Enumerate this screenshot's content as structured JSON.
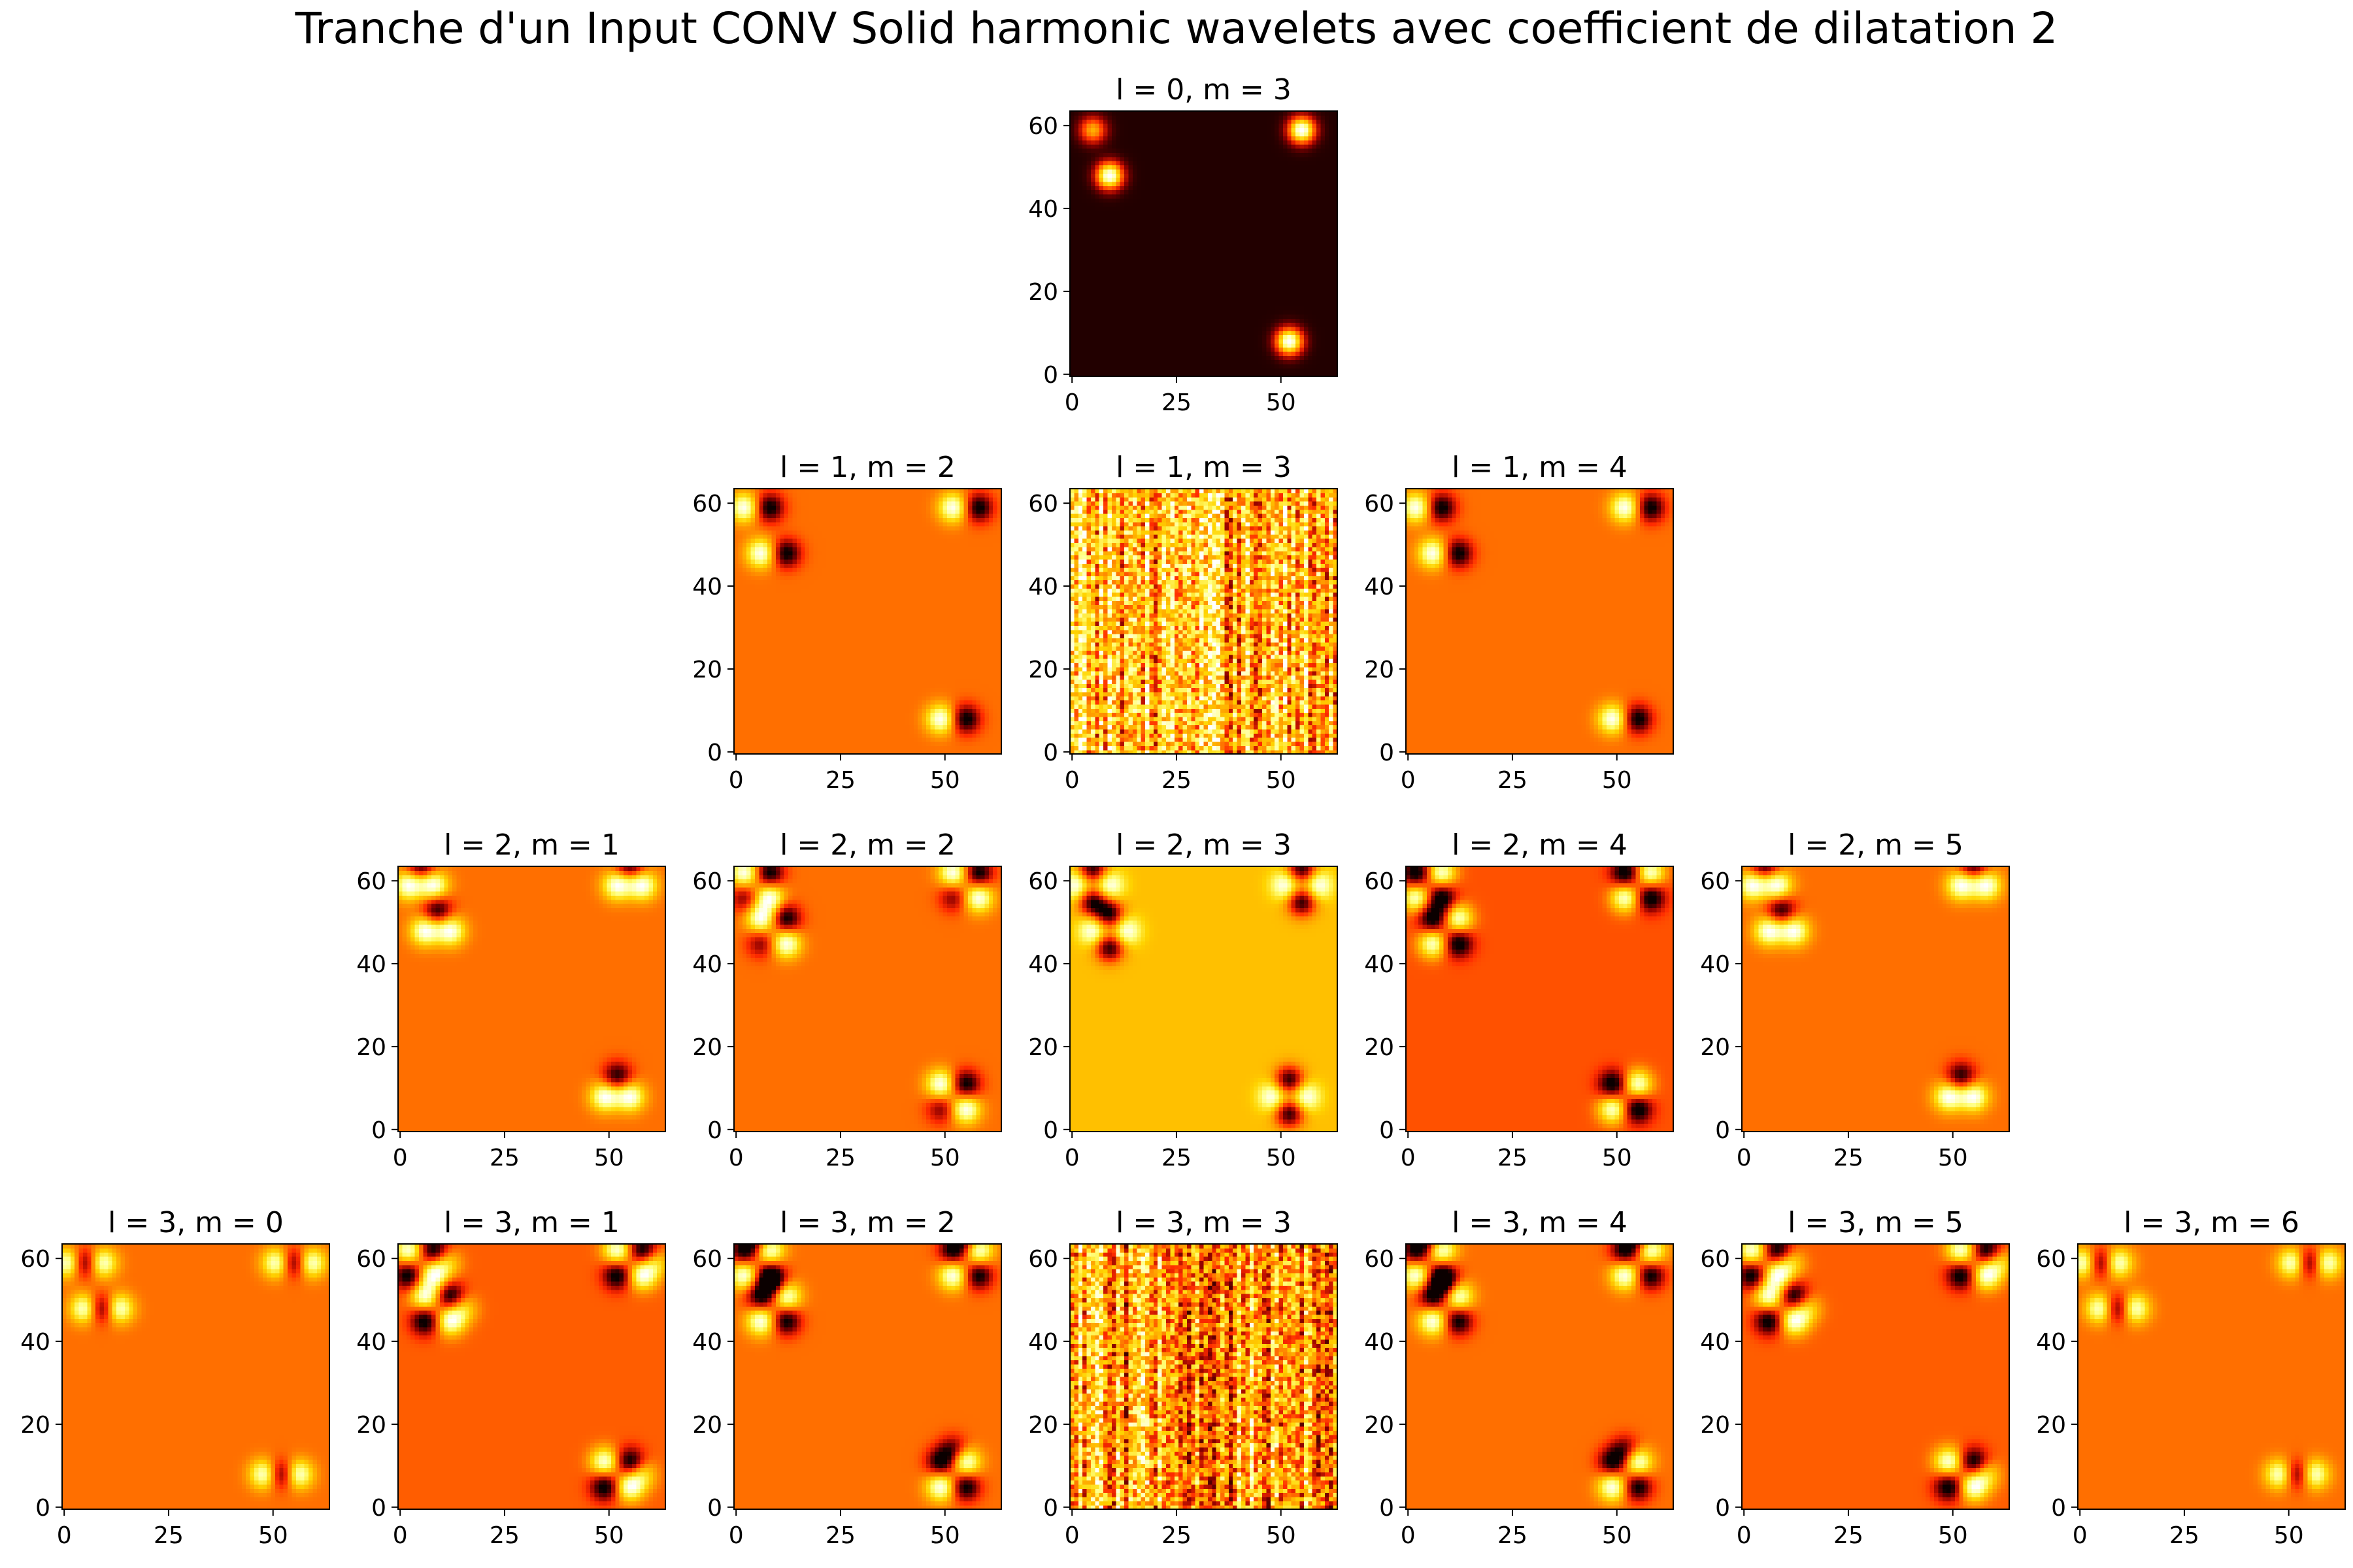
{
  "title": "Tranche d'un Input CONV Solid harmonic wavelets avec coefficient de dilatation 2",
  "colormap": {
    "name": "hot",
    "stops": [
      "#0b0000",
      "#8c0000",
      "#ff2a00",
      "#ff8c00",
      "#ffd400",
      "#ffff7a",
      "#ffffff"
    ]
  },
  "chart_data": [
    {
      "type": "heatmap",
      "title": "l = 0, m = 3",
      "xlim": [
        0,
        63
      ],
      "ylim": [
        0,
        63
      ],
      "xticks": [
        0,
        25,
        50
      ],
      "yticks": [
        0,
        20,
        40,
        60
      ],
      "background": 0.03,
      "pattern": "blobs"
    },
    {
      "type": "heatmap",
      "title": "l = 1, m = 2",
      "xlim": [
        0,
        63
      ],
      "ylim": [
        0,
        63
      ],
      "xticks": [
        0,
        25,
        50
      ],
      "yticks": [
        0,
        20,
        40,
        60
      ],
      "background": 0.45,
      "pattern": "dipole-x"
    },
    {
      "type": "heatmap",
      "title": "l = 1, m = 3",
      "xlim": [
        0,
        63
      ],
      "ylim": [
        0,
        63
      ],
      "xticks": [
        0,
        25,
        50
      ],
      "yticks": [
        0,
        20,
        40,
        60
      ],
      "background": 0.62,
      "pattern": "noise"
    },
    {
      "type": "heatmap",
      "title": "l = 1, m = 4",
      "xlim": [
        0,
        63
      ],
      "ylim": [
        0,
        63
      ],
      "xticks": [
        0,
        25,
        50
      ],
      "yticks": [
        0,
        20,
        40,
        60
      ],
      "background": 0.45,
      "pattern": "dipole-x"
    },
    {
      "type": "heatmap",
      "title": "l = 2, m = 1",
      "xlim": [
        0,
        63
      ],
      "ylim": [
        0,
        63
      ],
      "xticks": [
        0,
        25,
        50
      ],
      "yticks": [
        0,
        20,
        40,
        60
      ],
      "background": 0.45,
      "pattern": "quad-x"
    },
    {
      "type": "heatmap",
      "title": "l = 2, m = 2",
      "xlim": [
        0,
        63
      ],
      "ylim": [
        0,
        63
      ],
      "xticks": [
        0,
        25,
        50
      ],
      "yticks": [
        0,
        20,
        40,
        60
      ],
      "background": 0.45,
      "pattern": "quad-diag"
    },
    {
      "type": "heatmap",
      "title": "l = 2, m = 3",
      "xlim": [
        0,
        63
      ],
      "ylim": [
        0,
        63
      ],
      "xticks": [
        0,
        25,
        50
      ],
      "yticks": [
        0,
        20,
        40,
        60
      ],
      "background": 0.62,
      "pattern": "quad-y"
    },
    {
      "type": "heatmap",
      "title": "l = 2, m = 4",
      "xlim": [
        0,
        63
      ],
      "ylim": [
        0,
        63
      ],
      "xticks": [
        0,
        25,
        50
      ],
      "yticks": [
        0,
        20,
        40,
        60
      ],
      "background": 0.4,
      "pattern": "quad-diag2"
    },
    {
      "type": "heatmap",
      "title": "l = 2, m = 5",
      "xlim": [
        0,
        63
      ],
      "ylim": [
        0,
        63
      ],
      "xticks": [
        0,
        25,
        50
      ],
      "yticks": [
        0,
        20,
        40,
        60
      ],
      "background": 0.45,
      "pattern": "quad-x"
    },
    {
      "type": "heatmap",
      "title": "l = 3, m = 0",
      "xlim": [
        0,
        63
      ],
      "ylim": [
        0,
        63
      ],
      "xticks": [
        0,
        25,
        50
      ],
      "yticks": [
        0,
        20,
        40,
        60
      ],
      "background": 0.45,
      "pattern": "oct-x"
    },
    {
      "type": "heatmap",
      "title": "l = 3, m = 1",
      "xlim": [
        0,
        63
      ],
      "ylim": [
        0,
        63
      ],
      "xticks": [
        0,
        25,
        50
      ],
      "yticks": [
        0,
        20,
        40,
        60
      ],
      "background": 0.42,
      "pattern": "clover-a"
    },
    {
      "type": "heatmap",
      "title": "l = 3, m = 2",
      "xlim": [
        0,
        63
      ],
      "ylim": [
        0,
        63
      ],
      "xticks": [
        0,
        25,
        50
      ],
      "yticks": [
        0,
        20,
        40,
        60
      ],
      "background": 0.45,
      "pattern": "clover-b"
    },
    {
      "type": "heatmap",
      "title": "l = 3, m = 3",
      "xlim": [
        0,
        63
      ],
      "ylim": [
        0,
        63
      ],
      "xticks": [
        0,
        25,
        50
      ],
      "yticks": [
        0,
        20,
        40,
        60
      ],
      "background": 0.55,
      "pattern": "noise"
    },
    {
      "type": "heatmap",
      "title": "l = 3, m = 4",
      "xlim": [
        0,
        63
      ],
      "ylim": [
        0,
        63
      ],
      "xticks": [
        0,
        25,
        50
      ],
      "yticks": [
        0,
        20,
        40,
        60
      ],
      "background": 0.45,
      "pattern": "clover-b"
    },
    {
      "type": "heatmap",
      "title": "l = 3, m = 5",
      "xlim": [
        0,
        63
      ],
      "ylim": [
        0,
        63
      ],
      "xticks": [
        0,
        25,
        50
      ],
      "yticks": [
        0,
        20,
        40,
        60
      ],
      "background": 0.42,
      "pattern": "clover-a"
    },
    {
      "type": "heatmap",
      "title": "l = 3, m = 6",
      "xlim": [
        0,
        63
      ],
      "ylim": [
        0,
        63
      ],
      "xticks": [
        0,
        25,
        50
      ],
      "yticks": [
        0,
        20,
        40,
        60
      ],
      "background": 0.45,
      "pattern": "oct-x"
    }
  ]
}
